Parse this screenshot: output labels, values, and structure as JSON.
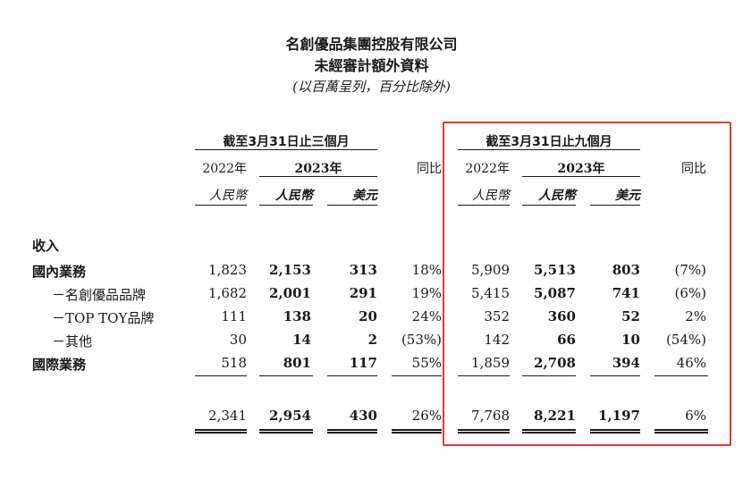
{
  "title": [
    "名創優品集團控股有限公司",
    "未經審計額外資料"
  ],
  "unit_note": "(以百萬呈列，百分比除外)",
  "periods": {
    "three_months": "截至3月31日止三個月",
    "nine_months": "截至3月31日止九個月"
  },
  "columns": {
    "y2022": "2022年",
    "y2023": "2023年",
    "yoy": "同比",
    "rmb": "人民幣",
    "usd": "美元"
  },
  "section_label": "收入",
  "rows": [
    {
      "label": "國內業務",
      "bold": true,
      "q": [
        "1,823",
        "2,153",
        "313",
        "18%"
      ],
      "n": [
        "5,909",
        "5,513",
        "803",
        "(7%)"
      ]
    },
    {
      "label": "－名創優品品牌",
      "bold": false,
      "q": [
        "1,682",
        "2,001",
        "291",
        "19%"
      ],
      "n": [
        "5,415",
        "5,087",
        "741",
        "(6%)"
      ]
    },
    {
      "label": "－TOP TOY品牌",
      "bold": false,
      "q": [
        "111",
        "138",
        "20",
        "24%"
      ],
      "n": [
        "352",
        "360",
        "52",
        "2%"
      ]
    },
    {
      "label": "－其他",
      "bold": false,
      "q": [
        "30",
        "14",
        "2",
        "(53%)"
      ],
      "n": [
        "142",
        "66",
        "10",
        "(54%)"
      ]
    },
    {
      "label": "國際業務",
      "bold": true,
      "q": [
        "518",
        "801",
        "117",
        "55%"
      ],
      "n": [
        "1,859",
        "2,708",
        "394",
        "46%"
      ]
    }
  ],
  "total": {
    "q": [
      "2,341",
      "2,954",
      "430",
      "26%"
    ],
    "n": [
      "7,768",
      "8,221",
      "1,197",
      "6%"
    ]
  },
  "colors": {
    "highlight_box": "#e53935",
    "text": "#1a1a1a"
  }
}
